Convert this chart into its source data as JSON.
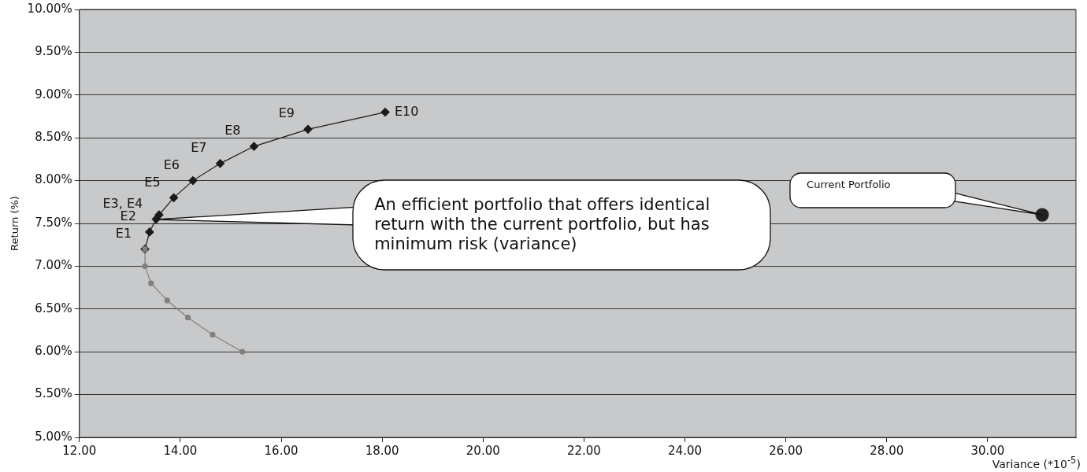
{
  "chart_data": {
    "type": "line",
    "xlabel": "Variance (*10$^{-5}$)",
    "ylabel": "Return (%)",
    "xlim": [
      12,
      31.75
    ],
    "ylim": [
      5,
      10
    ],
    "xticks": [
      {
        "value": 12,
        "label": "12.00"
      },
      {
        "value": 14,
        "label": "14.00"
      },
      {
        "value": 16,
        "label": "16.00"
      },
      {
        "value": 18,
        "label": "18.00"
      },
      {
        "value": 20,
        "label": "20.00"
      },
      {
        "value": 22,
        "label": "22.00"
      },
      {
        "value": 24,
        "label": "24.00"
      },
      {
        "value": 26,
        "label": "26.00"
      },
      {
        "value": 28,
        "label": "28.00"
      },
      {
        "value": 30,
        "label": "30.00"
      }
    ],
    "yticks": [
      {
        "value": 5,
        "label": "5.00%"
      },
      {
        "value": 5.5,
        "label": "5.50%"
      },
      {
        "value": 6,
        "label": "6.00%"
      },
      {
        "value": 6.5,
        "label": "6.50%"
      },
      {
        "value": 7,
        "label": "7.00%"
      },
      {
        "value": 7.5,
        "label": "7.50%"
      },
      {
        "value": 8,
        "label": "8.00%"
      },
      {
        "value": 8.5,
        "label": "8.50%"
      },
      {
        "value": 9,
        "label": "9.00%"
      },
      {
        "value": 9.5,
        "label": "9.50%"
      },
      {
        "value": 10,
        "label": "10.00%"
      }
    ],
    "grid": "y",
    "legend": false,
    "series": [
      {
        "type": "line",
        "color": "#808080",
        "marker": "circle",
        "x": [
          13.3,
          13.3,
          13.42,
          13.74,
          14.15,
          14.64,
          15.23
        ],
        "values": [
          7.2,
          7.0,
          6.8,
          6.6,
          6.4,
          6.2,
          6.0
        ]
      },
      {
        "color": "#1a1a1a",
        "marker": "diamond",
        "x": [
          13.3,
          13.39,
          13.52,
          13.58,
          13.87,
          14.25,
          14.79,
          15.46,
          16.53,
          18.06
        ],
        "values": [
          7.2,
          7.4,
          7.55,
          7.6,
          7.8,
          8.0,
          8.2,
          8.4,
          8.6,
          8.8
        ],
        "value_labels": [
          "E1",
          "E2",
          "E3, E4",
          null,
          "E5",
          "E6",
          "E7",
          "E8",
          "E9",
          "E10"
        ]
      },
      {
        "type": "scatter",
        "color": "#222222",
        "marker": "circle",
        "x": [
          31.08
        ],
        "values": [
          7.6
        ]
      }
    ],
    "annotations": [
      {
        "text": "An efficient portfolio that offers identical return with the current portfolio, but has minimum risk (variance)",
        "x": 13.52,
        "y": 7.55
      },
      "Current Portfolio"
    ]
  }
}
